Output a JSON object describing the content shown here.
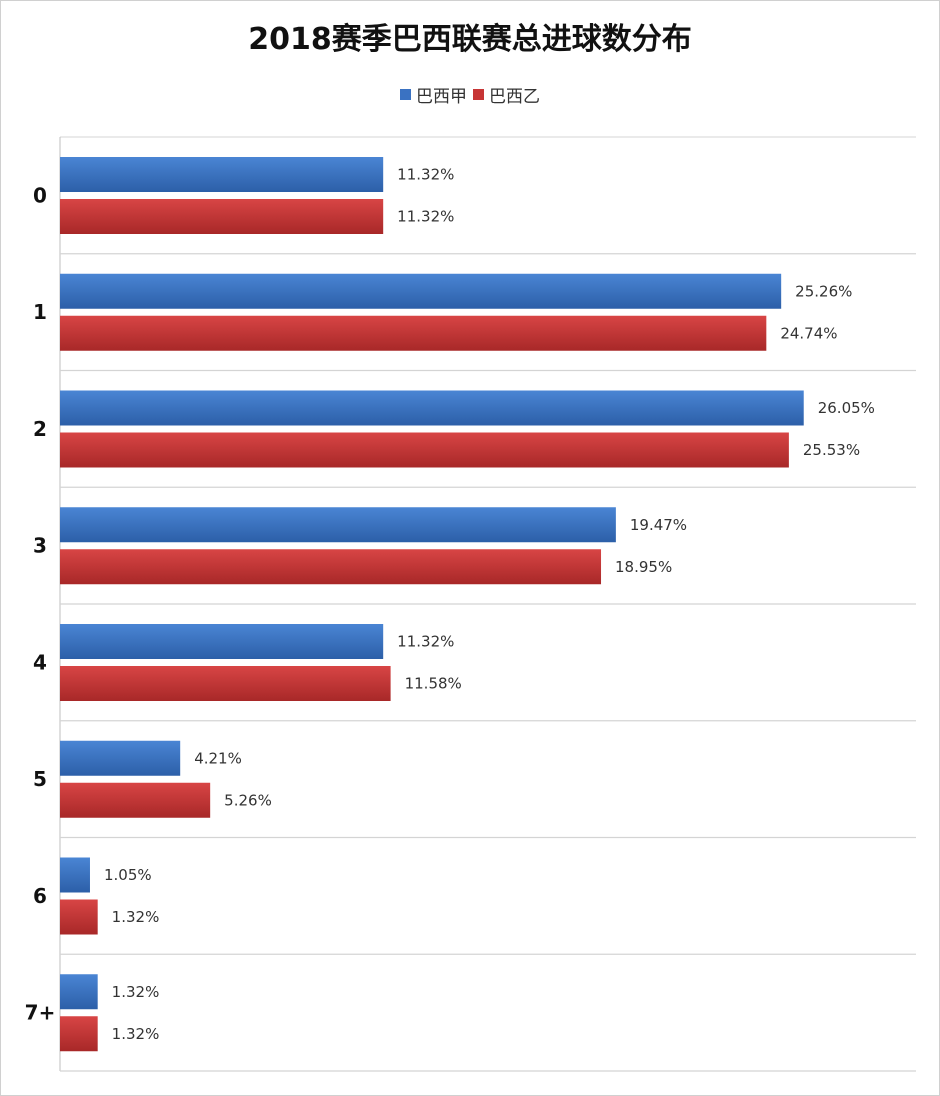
{
  "chart_data": {
    "type": "bar",
    "orientation": "horizontal",
    "title": "2018赛季巴西联赛总进球数分布",
    "categories": [
      "0",
      "1",
      "2",
      "3",
      "4",
      "5",
      "6",
      "7+"
    ],
    "series": [
      {
        "name": "巴西甲",
        "color": "#3a72c2",
        "values": [
          11.32,
          25.26,
          26.05,
          19.47,
          11.32,
          4.21,
          1.05,
          1.32
        ],
        "labels": [
          "11.32%",
          "25.26%",
          "26.05%",
          "19.47%",
          "11.32%",
          "4.21%",
          "1.05%",
          "1.32%"
        ]
      },
      {
        "name": "巴西乙",
        "color": "#c73535",
        "values": [
          11.32,
          24.74,
          25.53,
          18.95,
          11.58,
          5.26,
          1.32,
          1.32
        ],
        "labels": [
          "11.32%",
          "24.74%",
          "25.53%",
          "18.95%",
          "11.58%",
          "5.26%",
          "1.32%",
          "1.32%"
        ]
      }
    ],
    "xlim": [
      0,
      30
    ],
    "legend_position": "top",
    "grid": "horizontal separators"
  }
}
